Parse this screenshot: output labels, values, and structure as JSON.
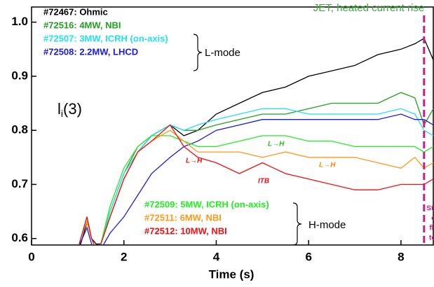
{
  "chart_data": {
    "type": "line",
    "title": "JET, heated current rise",
    "xlabel": "Time (s)",
    "quantity_label": [
      "l",
      "i",
      "(3)"
    ],
    "xlim": [
      0,
      8.7
    ],
    "ylim": [
      0.588,
      1.028
    ],
    "xticks": [
      0,
      2,
      4,
      6,
      8
    ],
    "yticks": [
      0.6,
      0.7,
      0.8,
      0.9,
      {
        "value": 1.0,
        "label": "1.0"
      }
    ],
    "x": [
      1.0,
      1.1,
      1.2,
      1.3,
      1.4,
      1.5,
      1.7,
      2.0,
      2.3,
      2.6,
      3.0,
      3.3,
      3.6,
      4.0,
      4.5,
      5.0,
      5.5,
      6.0,
      6.5,
      7.0,
      7.5,
      8.0,
      8.3,
      8.5,
      8.7
    ],
    "series": [
      {
        "name": "#72467: Ohmic",
        "color": "#000000",
        "values": [
          0.58,
          0.6,
          0.63,
          0.6,
          0.59,
          0.59,
          0.64,
          0.71,
          0.76,
          0.79,
          0.81,
          0.79,
          0.8,
          0.83,
          0.85,
          0.87,
          0.88,
          0.9,
          0.91,
          0.92,
          0.94,
          0.95,
          0.96,
          0.97,
          0.93
        ]
      },
      {
        "name": "#72516: 4MW, NBI",
        "color": "#22a022",
        "values": [
          0.58,
          0.61,
          0.64,
          0.6,
          0.58,
          0.59,
          0.65,
          0.72,
          0.77,
          0.79,
          0.81,
          0.8,
          0.8,
          0.81,
          0.82,
          0.83,
          0.83,
          0.84,
          0.85,
          0.85,
          0.85,
          0.87,
          0.86,
          0.81,
          0.84
        ]
      },
      {
        "name": "#72507: 3MW, ICRH (on-axis)",
        "color": "#22e0f0",
        "values": [
          0.58,
          0.61,
          0.64,
          0.6,
          0.58,
          0.59,
          0.65,
          0.72,
          0.76,
          0.79,
          0.81,
          0.8,
          0.81,
          0.82,
          0.83,
          0.84,
          0.84,
          0.83,
          0.83,
          0.83,
          0.83,
          0.84,
          0.83,
          0.8,
          0.79
        ]
      },
      {
        "name": "#72508: 2.2MW, LHCD",
        "color": "#1a1ae0",
        "values": [
          0.57,
          0.6,
          0.62,
          0.59,
          0.57,
          0.58,
          0.61,
          0.64,
          0.68,
          0.72,
          0.75,
          0.77,
          0.78,
          0.8,
          0.81,
          0.82,
          0.82,
          0.82,
          0.82,
          0.82,
          0.82,
          0.83,
          0.82,
          0.82,
          0.81
        ]
      },
      {
        "name": "#72509: 5MW, ICRH (on-axis)",
        "color": "#22ee22",
        "values": [
          0.58,
          0.61,
          0.64,
          0.6,
          0.58,
          0.59,
          0.66,
          0.73,
          0.77,
          0.79,
          0.79,
          0.78,
          0.77,
          0.77,
          0.78,
          0.79,
          0.79,
          0.78,
          0.78,
          0.77,
          0.77,
          0.77,
          0.77,
          0.76,
          0.77
        ]
      },
      {
        "name": "#72511: 6MW, NBI",
        "color": "#ff9a1a",
        "values": [
          0.58,
          0.61,
          0.63,
          0.6,
          0.58,
          0.59,
          0.64,
          0.71,
          0.76,
          0.78,
          0.8,
          0.78,
          0.76,
          0.76,
          0.76,
          0.75,
          0.76,
          0.75,
          0.75,
          0.75,
          0.74,
          0.73,
          0.75,
          0.73,
          0.74
        ]
      },
      {
        "name": "#72512: 10MW, NBI",
        "color": "#ee1111",
        "values": [
          0.58,
          0.61,
          0.64,
          0.6,
          0.58,
          0.59,
          0.64,
          0.71,
          0.76,
          0.78,
          0.81,
          0.77,
          0.75,
          0.74,
          0.72,
          0.74,
          0.72,
          0.71,
          0.7,
          0.69,
          0.69,
          0.7,
          0.7,
          0.7,
          0.71
        ]
      }
    ],
    "legend_groups": [
      "L-mode",
      "H-mode"
    ],
    "annotations": [
      {
        "text": "L→H",
        "color": "#22c022"
      },
      {
        "text": "L→H",
        "color": "#ee1111"
      },
      {
        "text": "L→H",
        "color": "#ff8c00"
      },
      {
        "text": "ITB",
        "color": "#ee1111"
      }
    ],
    "flat_top_time": 8.5,
    "flat_top_label": [
      "Start",
      "of",
      "flat",
      "top"
    ],
    "grid": false
  }
}
